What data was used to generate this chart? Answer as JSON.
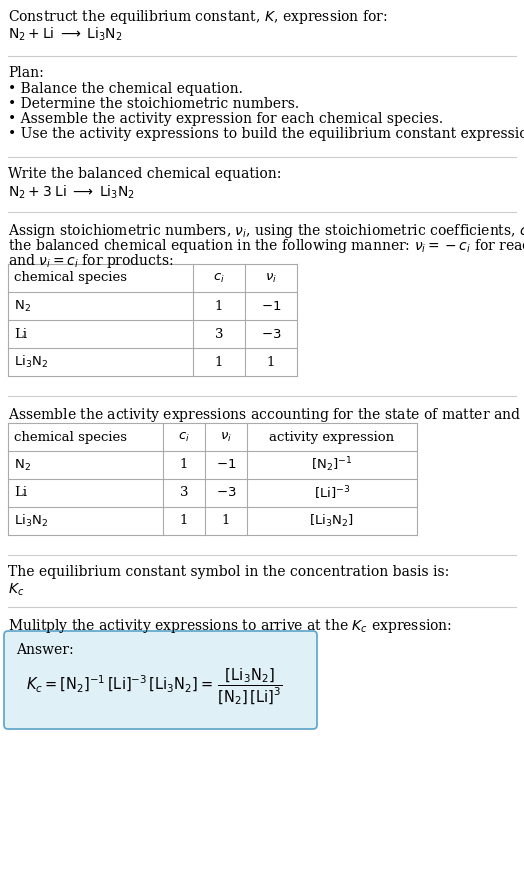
{
  "bg_color": "#ffffff",
  "text_color": "#000000",
  "title_line1": "Construct the equilibrium constant, $K$, expression for:",
  "title_line2": "$\\mathrm{N_2 + Li \\;\\longrightarrow\\; Li_3N_2}$",
  "plan_header": "Plan:",
  "plan_items": [
    "• Balance the chemical equation.",
    "• Determine the stoichiometric numbers.",
    "• Assemble the activity expression for each chemical species.",
    "• Use the activity expressions to build the equilibrium constant expression."
  ],
  "balanced_header": "Write the balanced chemical equation:",
  "balanced_eq": "$\\mathrm{N_2 + 3\\; Li \\;\\longrightarrow\\; Li_3N_2}$",
  "stoich_intro_1": "Assign stoichiometric numbers, $\\nu_i$, using the stoichiometric coefficients, $c_i$, from",
  "stoich_intro_2": "the balanced chemical equation in the following manner: $\\nu_i = -c_i$ for reactants",
  "stoich_intro_3": "and $\\nu_i = c_i$ for products:",
  "table1_headers": [
    "chemical species",
    "$c_i$",
    "$\\nu_i$"
  ],
  "table1_rows": [
    [
      "$\\mathrm{N_2}$",
      "1",
      "$-1$"
    ],
    [
      "Li",
      "3",
      "$-3$"
    ],
    [
      "$\\mathrm{Li_3N_2}$",
      "1",
      "1"
    ]
  ],
  "activity_intro": "Assemble the activity expressions accounting for the state of matter and $\\nu_i$:",
  "table2_headers": [
    "chemical species",
    "$c_i$",
    "$\\nu_i$",
    "activity expression"
  ],
  "table2_rows": [
    [
      "$\\mathrm{N_2}$",
      "1",
      "$-1$",
      "$[\\mathrm{N_2}]^{-1}$"
    ],
    [
      "Li",
      "3",
      "$-3$",
      "$[\\mathrm{Li}]^{-3}$"
    ],
    [
      "$\\mathrm{Li_3N_2}$",
      "1",
      "1",
      "$[\\mathrm{Li_3N_2}]$"
    ]
  ],
  "kc_line1": "The equilibrium constant symbol in the concentration basis is:",
  "kc_symbol": "$K_c$",
  "multiply_line": "Mulitply the activity expressions to arrive at the $K_c$ expression:",
  "answer_box_color": "#dff0f7",
  "answer_border_color": "#5ba3c9",
  "line_color": "#cccccc",
  "table_line_color": "#aaaaaa",
  "fs": 10.0,
  "fs_table": 9.5
}
